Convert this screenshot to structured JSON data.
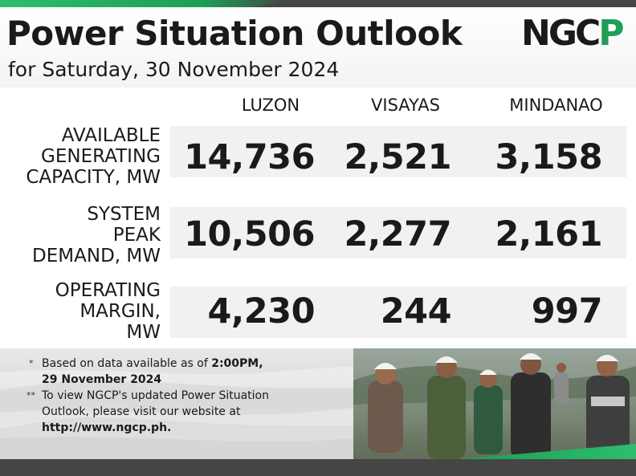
{
  "header": {
    "title": "Power Situation Outlook",
    "subtitle": "for Saturday, 30 November 2024",
    "logo_text": "NGCP"
  },
  "columns": [
    "LUZON",
    "VISAYAS",
    "MINDANAO"
  ],
  "rows": [
    {
      "label_lines": [
        "AVAILABLE",
        "GENERATING",
        "CAPACITY, MW"
      ],
      "values": [
        "14,736",
        "2,521",
        "3,158"
      ]
    },
    {
      "label_lines": [
        "SYSTEM",
        "PEAK",
        "DEMAND, MW"
      ],
      "values": [
        "10,506",
        "2,277",
        "2,161"
      ]
    },
    {
      "label_lines": [
        "OPERATING",
        "MARGIN,",
        "MW"
      ],
      "values": [
        "4,230",
        "244",
        "997"
      ]
    }
  ],
  "notes": {
    "note1": {
      "marker": "*",
      "text_a": "Based on data available as of ",
      "bold_a": "2:00PM,",
      "bold_b": "29 November 2024"
    },
    "note2": {
      "marker": "**",
      "line1": "To view NGCP's updated Power Situation",
      "line2": "Outlook, please visit our website at",
      "link": "http://www.ngcp.ph."
    }
  },
  "colors": {
    "brand_green": "#1e9e56",
    "brand_dark": "#1a1a1a",
    "bar_gray": "#454545",
    "row_band": "#f1f1f1"
  }
}
